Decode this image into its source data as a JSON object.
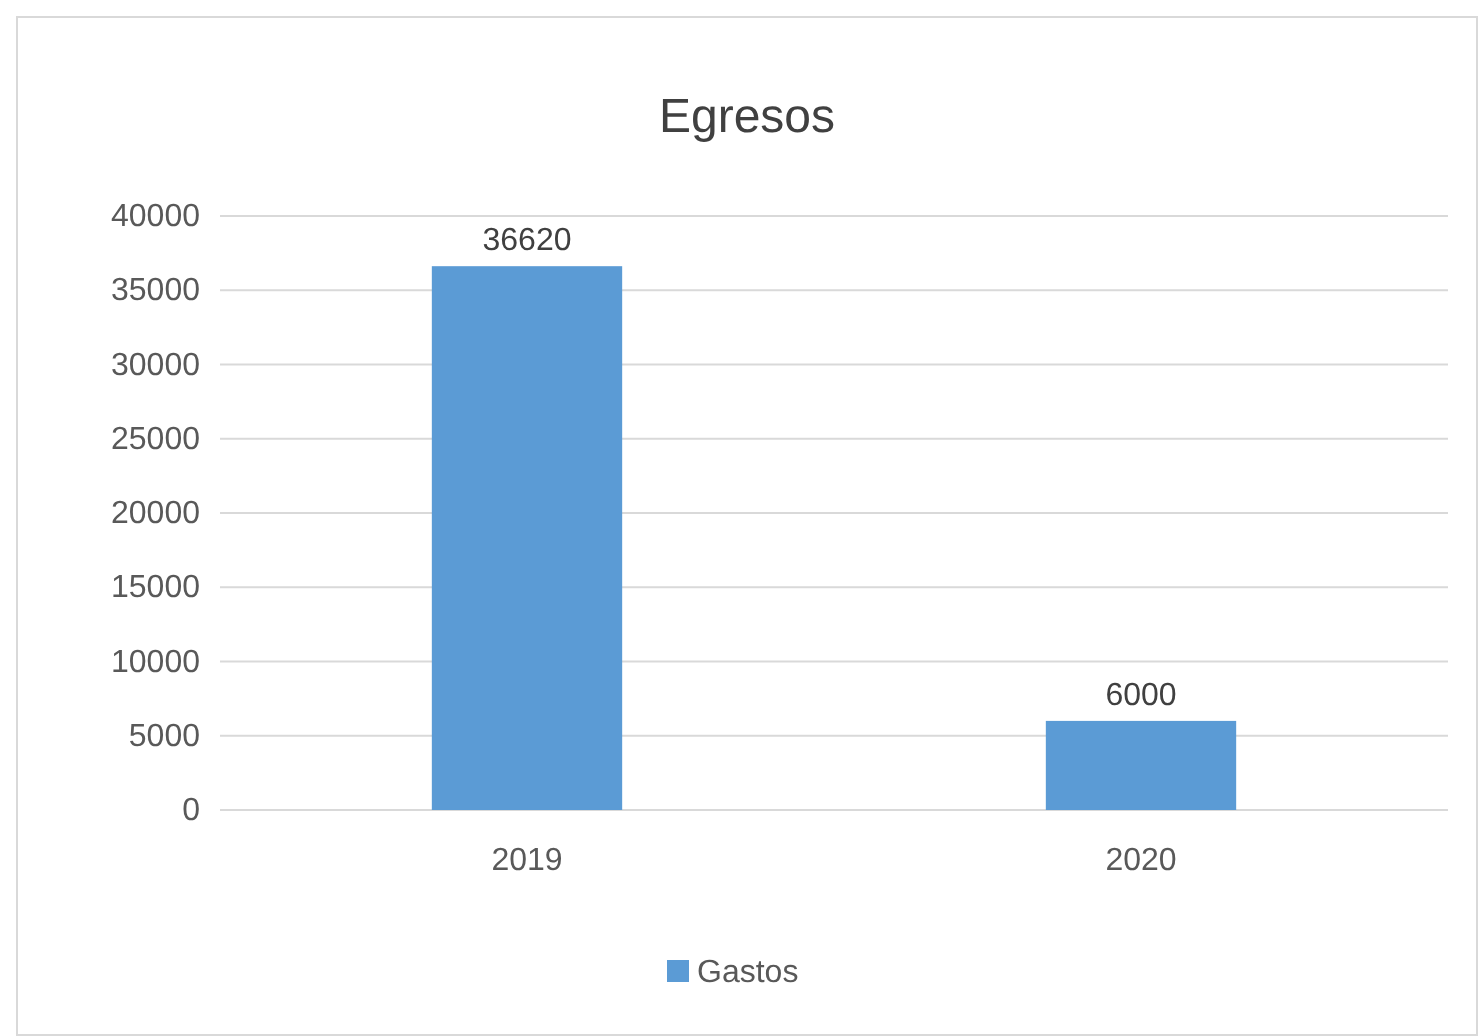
{
  "chart_data": {
    "type": "bar",
    "title": "Egresos",
    "categories": [
      "2019",
      "2020"
    ],
    "series": [
      {
        "name": "Gastos",
        "color": "#5b9bd5",
        "values": [
          36620,
          6000
        ]
      }
    ],
    "ylim": [
      0,
      40000
    ],
    "yticks": [
      0,
      5000,
      10000,
      15000,
      20000,
      25000,
      30000,
      35000,
      40000
    ],
    "grid": "y",
    "legend": "bottom",
    "data_labels": true
  }
}
